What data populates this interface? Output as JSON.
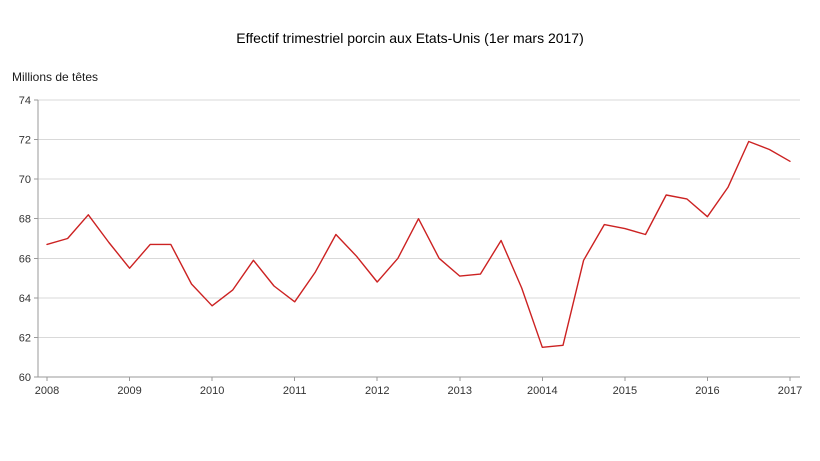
{
  "chart_data": {
    "type": "line",
    "title": "Effectif trimestriel porcin aux Etats-Unis (1er mars 2017)",
    "ylabel": "Millions de têtes",
    "xlabel": "",
    "x_tick_labels": [
      "2008",
      "2009",
      "2010",
      "2011",
      "2012",
      "2013",
      "20014",
      "2015",
      "2016",
      "2017"
    ],
    "categories": [
      "2008Q1",
      "2008Q2",
      "2008Q3",
      "2008Q4",
      "2009Q1",
      "2009Q2",
      "2009Q3",
      "2009Q4",
      "2010Q1",
      "2010Q2",
      "2010Q3",
      "2010Q4",
      "2011Q1",
      "2011Q2",
      "2011Q3",
      "2011Q4",
      "2012Q1",
      "2012Q2",
      "2012Q3",
      "2012Q4",
      "2013Q1",
      "2013Q2",
      "2013Q3",
      "2013Q4",
      "2014Q1",
      "2014Q2",
      "2014Q3",
      "2014Q4",
      "2015Q1",
      "2015Q2",
      "2015Q3",
      "2015Q4",
      "2016Q1",
      "2016Q2",
      "2016Q3",
      "2016Q4",
      "2017Q1"
    ],
    "values": [
      66.7,
      67.0,
      68.2,
      66.8,
      65.5,
      66.7,
      66.7,
      64.7,
      63.6,
      64.4,
      65.9,
      64.6,
      63.8,
      65.3,
      67.2,
      66.1,
      64.8,
      66.0,
      68.0,
      66.0,
      65.1,
      65.2,
      66.9,
      64.5,
      61.5,
      61.6,
      65.9,
      67.7,
      67.5,
      67.2,
      69.2,
      69.0,
      68.1,
      69.6,
      71.9,
      71.5,
      70.9
    ],
    "ylim": [
      60,
      74
    ],
    "y_tick_step": 2,
    "y_tick_labels": [
      "60",
      "62",
      "64",
      "66",
      "68",
      "70",
      "72",
      "74"
    ],
    "grid": true,
    "legend": "none",
    "line_color": "#cc2222",
    "axis_color": "#9a9a9a",
    "grid_color": "#d9d9d9"
  }
}
